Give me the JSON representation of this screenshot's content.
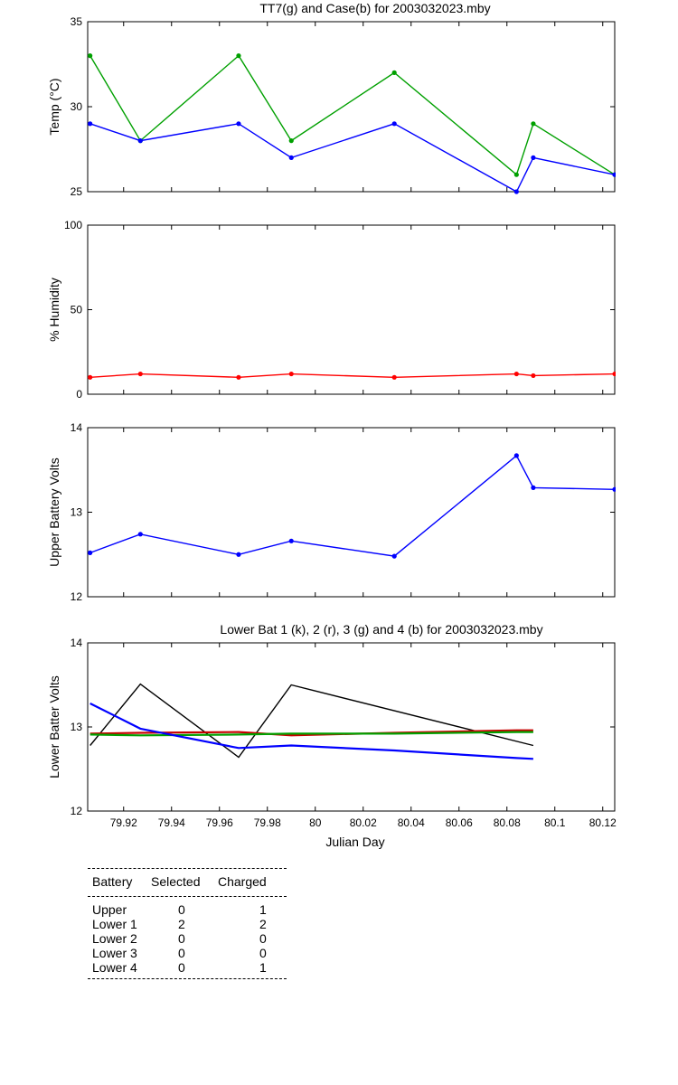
{
  "chart_data": [
    {
      "type": "line",
      "title": "TT7(g) and Case(b) for 2003032023.mby",
      "xlabel": "",
      "ylabel": "Temp (°C)",
      "xlim": [
        79.905,
        80.125
      ],
      "ylim": [
        25,
        35
      ],
      "yticks": [
        25,
        30,
        35
      ],
      "series": [
        {
          "color": "#00a000",
          "marker": true,
          "points": [
            [
              79.906,
              33
            ],
            [
              79.927,
              28
            ],
            [
              79.968,
              33
            ],
            [
              79.99,
              28
            ],
            [
              80.033,
              32
            ],
            [
              80.084,
              26
            ],
            [
              80.091,
              29
            ],
            [
              80.125,
              26
            ]
          ]
        },
        {
          "color": "#0000ff",
          "marker": true,
          "points": [
            [
              79.906,
              29
            ],
            [
              79.927,
              28
            ],
            [
              79.968,
              29
            ],
            [
              79.99,
              27
            ],
            [
              80.033,
              29
            ],
            [
              80.084,
              25
            ],
            [
              80.091,
              27
            ],
            [
              80.125,
              26
            ]
          ]
        }
      ]
    },
    {
      "type": "line",
      "title": "",
      "xlabel": "",
      "ylabel": "% Humidity",
      "xlim": [
        79.905,
        80.125
      ],
      "ylim": [
        0,
        100
      ],
      "yticks": [
        0,
        50,
        100
      ],
      "series": [
        {
          "color": "#ff0000",
          "marker": true,
          "points": [
            [
              79.906,
              10
            ],
            [
              79.927,
              12
            ],
            [
              79.968,
              10
            ],
            [
              79.99,
              12
            ],
            [
              80.033,
              10
            ],
            [
              80.084,
              12
            ],
            [
              80.091,
              11
            ],
            [
              80.125,
              12
            ]
          ]
        }
      ]
    },
    {
      "type": "line",
      "title": "",
      "xlabel": "",
      "ylabel": "Upper Battery Volts",
      "xlim": [
        79.905,
        80.125
      ],
      "ylim": [
        12,
        14
      ],
      "yticks": [
        12,
        13,
        14
      ],
      "series": [
        {
          "color": "#0000ff",
          "marker": true,
          "points": [
            [
              79.906,
              12.52
            ],
            [
              79.927,
              12.74
            ],
            [
              79.968,
              12.5
            ],
            [
              79.99,
              12.66
            ],
            [
              80.033,
              12.48
            ],
            [
              80.084,
              13.67
            ],
            [
              80.091,
              13.29
            ],
            [
              80.125,
              13.27
            ]
          ]
        }
      ]
    },
    {
      "type": "line",
      "title": "Lower Bat 1 (k), 2 (r), 3 (g) and 4 (b) for 2003032023.mby",
      "xlabel": "Julian Day",
      "ylabel": "Lower Batter Volts",
      "xlim": [
        79.905,
        80.125
      ],
      "ylim": [
        12,
        14
      ],
      "yticks": [
        12,
        13,
        14
      ],
      "xticks": [
        "79.92",
        "79.94",
        "79.96",
        "79.98",
        "80",
        "80.02",
        "80.04",
        "80.06",
        "80.08",
        "80.1",
        "80.12"
      ],
      "series": [
        {
          "color": "#000000",
          "marker": false,
          "points": [
            [
              79.906,
              12.78
            ],
            [
              79.927,
              13.51
            ],
            [
              79.968,
              12.64
            ],
            [
              79.99,
              13.5
            ],
            [
              80.091,
              12.78
            ]
          ]
        },
        {
          "color": "#c80000",
          "marker": false,
          "points": [
            [
              79.906,
              12.92
            ],
            [
              79.927,
              12.93
            ],
            [
              79.968,
              12.94
            ],
            [
              79.99,
              12.9
            ],
            [
              80.033,
              12.93
            ],
            [
              80.084,
              12.96
            ],
            [
              80.091,
              12.96
            ]
          ]
        },
        {
          "color": "#00a000",
          "marker": false,
          "points": [
            [
              79.906,
              12.91
            ],
            [
              79.927,
              12.9
            ],
            [
              79.968,
              12.91
            ],
            [
              79.99,
              12.92
            ],
            [
              80.033,
              12.92
            ],
            [
              80.084,
              12.94
            ],
            [
              80.091,
              12.94
            ]
          ]
        },
        {
          "color": "#0000ff",
          "marker": false,
          "points": [
            [
              79.906,
              13.28
            ],
            [
              79.927,
              12.98
            ],
            [
              79.968,
              12.75
            ],
            [
              79.99,
              12.78
            ],
            [
              80.033,
              12.72
            ],
            [
              80.084,
              12.63
            ],
            [
              80.091,
              12.62
            ]
          ]
        }
      ]
    }
  ],
  "battery_table": {
    "headers": [
      "Battery",
      "Selected",
      "Charged"
    ],
    "rows": [
      {
        "battery": "Upper",
        "selected": "0",
        "charged": "1"
      },
      {
        "battery": "Lower 1",
        "selected": "2",
        "charged": "2"
      },
      {
        "battery": "Lower 2",
        "selected": "0",
        "charged": "0"
      },
      {
        "battery": "Lower 3",
        "selected": "0",
        "charged": "0"
      },
      {
        "battery": "Lower 4",
        "selected": "0",
        "charged": "1"
      }
    ]
  }
}
